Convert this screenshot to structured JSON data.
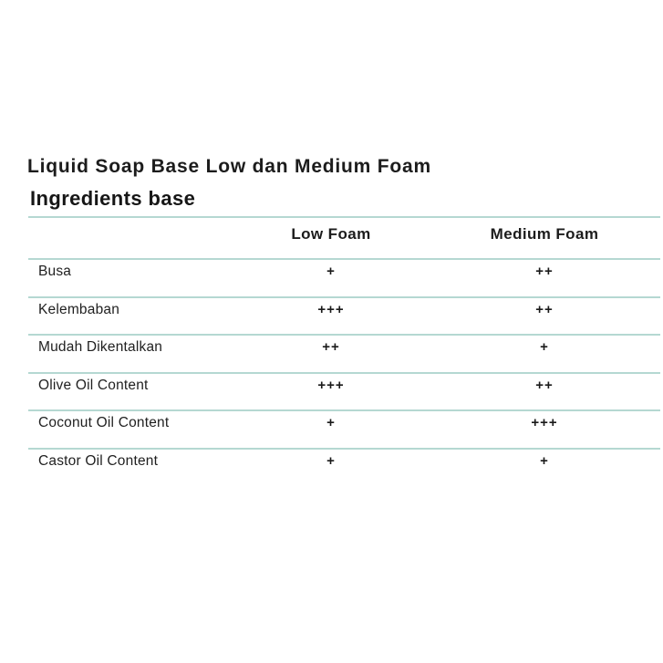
{
  "page": {
    "background_color": "#ffffff",
    "text_color": "#1e1e1e",
    "divider_color": "#b5d8d2"
  },
  "title": "Liquid Soap Base Low dan Medium Foam",
  "subtitle": "Ingredients base",
  "table": {
    "columns": {
      "col_low": "Low Foam",
      "col_medium": "Medium Foam"
    },
    "rows": [
      {
        "label": "Busa",
        "low_foam": "+",
        "medium_foam": "++"
      },
      {
        "label": "Kelembaban",
        "low_foam": "+++",
        "medium_foam": "++"
      },
      {
        "label": "Mudah Dikentalkan",
        "low_foam": "++",
        "medium_foam": "+"
      },
      {
        "label": "Olive Oil Content",
        "low_foam": "+++",
        "medium_foam": "++"
      },
      {
        "label": "Coconut Oil Content",
        "low_foam": "+",
        "medium_foam": "+++"
      },
      {
        "label": "Castor Oil Content",
        "low_foam": "+",
        "medium_foam": "+"
      }
    ]
  }
}
